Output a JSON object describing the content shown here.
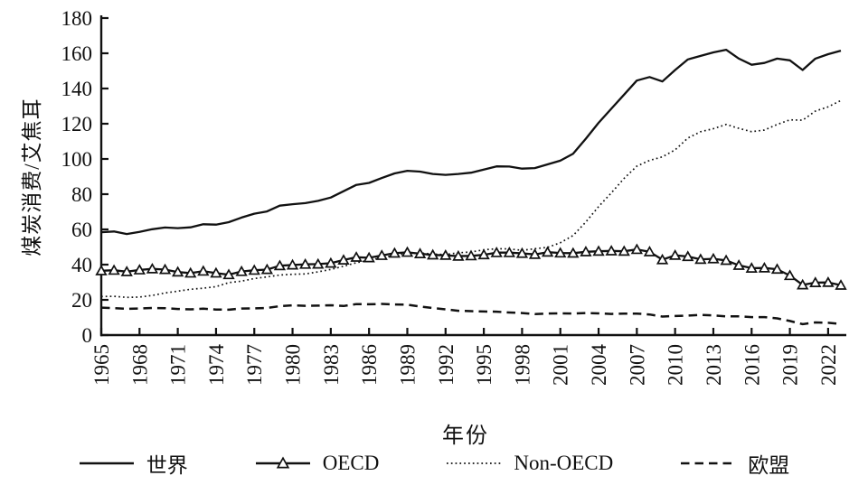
{
  "figure": {
    "background": "#ffffff",
    "line_color": "#111111"
  },
  "chart_data": {
    "type": "line",
    "title": "",
    "xlabel": "年份",
    "ylabel": "煤炭消费/艾焦耳",
    "grid": false,
    "legend_position": "bottom",
    "ylim": [
      0,
      180
    ],
    "y_ticks": [
      0,
      20,
      40,
      60,
      80,
      100,
      120,
      140,
      160,
      180
    ],
    "x_tick_years": [
      1965,
      1968,
      1971,
      1974,
      1977,
      1980,
      1983,
      1986,
      1989,
      1992,
      1995,
      1998,
      2001,
      2004,
      2007,
      2010,
      2013,
      2016,
      2019,
      2022
    ],
    "x": [
      1965,
      1966,
      1967,
      1968,
      1969,
      1970,
      1971,
      1972,
      1973,
      1974,
      1975,
      1976,
      1977,
      1978,
      1979,
      1980,
      1981,
      1982,
      1983,
      1984,
      1985,
      1986,
      1987,
      1988,
      1989,
      1990,
      1991,
      1992,
      1993,
      1994,
      1995,
      1996,
      1997,
      1998,
      1999,
      2000,
      2001,
      2002,
      2003,
      2004,
      2005,
      2006,
      2007,
      2008,
      2009,
      2010,
      2011,
      2012,
      2013,
      2014,
      2015,
      2016,
      2017,
      2018,
      2019,
      2020,
      2021,
      2022,
      2023
    ],
    "series": [
      {
        "id": "world",
        "name": "世界",
        "style": "solid",
        "marker": "none",
        "values": [
          58.4,
          58.8,
          57.4,
          58.6,
          60.1,
          61.1,
          60.7,
          61.2,
          62.9,
          62.7,
          64.1,
          66.7,
          68.9,
          70.2,
          73.5,
          74.3,
          74.9,
          76.2,
          78.1,
          81.7,
          85.3,
          86.4,
          89.2,
          91.8,
          93.3,
          92.8,
          91.5,
          91.0,
          91.5,
          92.2,
          94.0,
          95.8,
          95.7,
          94.5,
          94.8,
          96.9,
          99.0,
          103.0,
          111.5,
          120.5,
          128.5,
          136.5,
          144.5,
          146.5,
          144.0,
          150.5,
          156.5,
          158.5,
          160.5,
          162.0,
          157.0,
          153.5,
          154.5,
          157.0,
          156.0,
          150.5,
          157.0,
          159.5,
          161.5
        ]
      },
      {
        "id": "oecd",
        "name": "OECD",
        "style": "solid",
        "marker": "triangle",
        "values": [
          36.5,
          36.8,
          36.0,
          37.0,
          37.6,
          37.2,
          35.8,
          35.2,
          36.3,
          35.2,
          34.3,
          36.1,
          36.8,
          37.2,
          39.4,
          39.8,
          40.2,
          40.3,
          40.8,
          42.6,
          44.2,
          43.9,
          45.2,
          46.5,
          47.0,
          46.2,
          45.5,
          45.3,
          44.8,
          45.0,
          45.6,
          46.8,
          46.8,
          46.4,
          45.8,
          47.1,
          46.6,
          46.5,
          47.3,
          47.6,
          47.8,
          47.6,
          48.6,
          47.3,
          42.8,
          45.3,
          44.6,
          43.0,
          43.3,
          42.4,
          39.6,
          38.0,
          38.1,
          37.4,
          33.8,
          28.5,
          29.8,
          29.9,
          28.3
        ]
      },
      {
        "id": "non-oecd",
        "name": "Non-OECD",
        "style": "dotted",
        "marker": "none",
        "values": [
          21.9,
          22.0,
          21.4,
          21.6,
          22.5,
          23.9,
          24.9,
          26.0,
          26.6,
          27.5,
          29.8,
          30.6,
          32.1,
          33.0,
          34.1,
          34.5,
          34.7,
          35.9,
          37.3,
          39.1,
          41.1,
          42.5,
          44.0,
          45.3,
          46.3,
          46.6,
          46.0,
          45.7,
          46.7,
          47.2,
          48.4,
          49.0,
          48.9,
          48.1,
          49.0,
          49.8,
          52.4,
          56.5,
          64.2,
          72.9,
          80.7,
          88.9,
          95.9,
          99.2,
          101.2,
          105.2,
          111.9,
          115.5,
          117.2,
          119.6,
          117.4,
          115.5,
          116.4,
          119.6,
          122.2,
          122.0,
          127.2,
          129.6,
          133.2
        ]
      },
      {
        "id": "eu",
        "name": "欧盟",
        "style": "dashed",
        "marker": "none",
        "values": [
          15.6,
          15.3,
          14.9,
          15.1,
          15.4,
          15.3,
          14.8,
          14.6,
          15.0,
          14.5,
          14.4,
          15.1,
          15.2,
          15.4,
          16.4,
          16.9,
          16.6,
          16.7,
          16.9,
          16.5,
          17.6,
          17.5,
          17.7,
          17.4,
          17.3,
          16.2,
          15.4,
          14.6,
          13.8,
          13.6,
          13.4,
          13.3,
          12.8,
          12.5,
          11.9,
          12.2,
          12.3,
          12.2,
          12.5,
          12.3,
          12.0,
          12.2,
          12.2,
          11.7,
          10.5,
          10.8,
          11.1,
          11.5,
          11.2,
          10.6,
          10.6,
          10.2,
          10.2,
          9.5,
          8.0,
          6.2,
          7.2,
          7.0,
          6.3
        ]
      }
    ]
  }
}
